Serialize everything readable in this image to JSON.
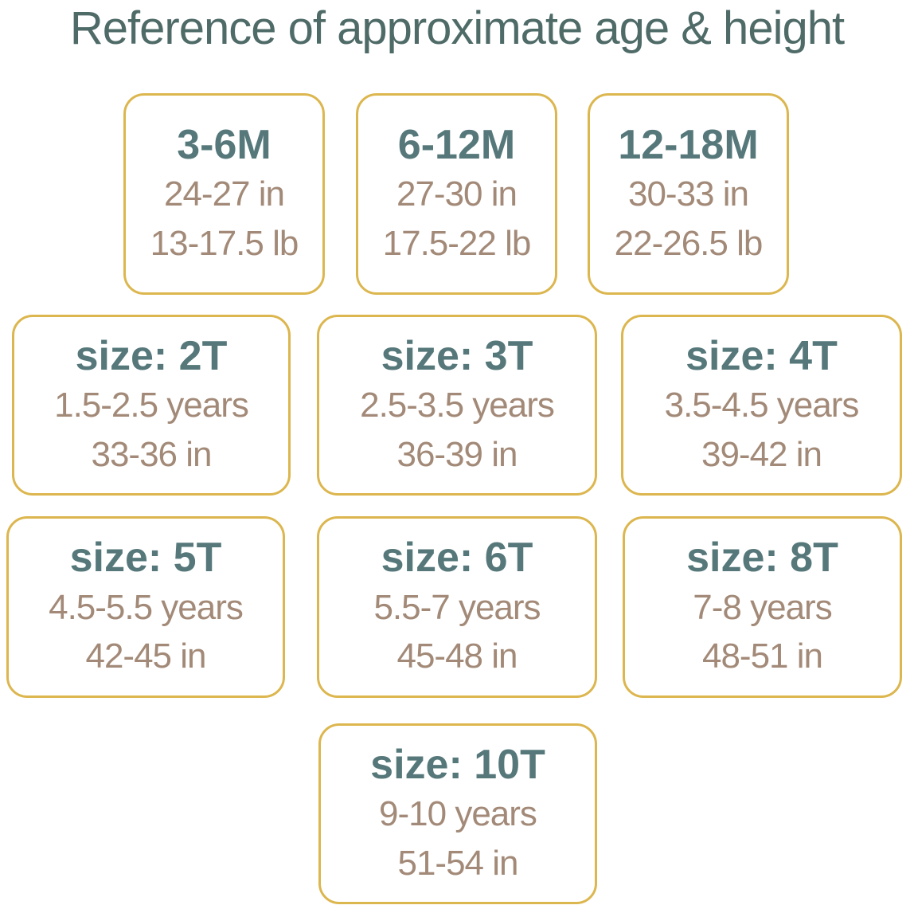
{
  "title": "Reference of approximate age & height",
  "cards": [
    {
      "heading": "3-6M",
      "lines": [
        "24-27 in",
        "13-17.5 lb"
      ]
    },
    {
      "heading": "6-12M",
      "lines": [
        "27-30 in",
        "17.5-22 lb"
      ]
    },
    {
      "heading": "12-18M",
      "lines": [
        "30-33 in",
        "22-26.5 lb"
      ]
    },
    {
      "heading": "size: 2T",
      "lines": [
        "1.5-2.5 years",
        "33-36 in"
      ]
    },
    {
      "heading": "size: 3T",
      "lines": [
        "2.5-3.5 years",
        "36-39 in"
      ]
    },
    {
      "heading": "size: 4T",
      "lines": [
        "3.5-4.5 years",
        "39-42 in"
      ]
    },
    {
      "heading": "size: 5T",
      "lines": [
        "4.5-5.5 years",
        "42-45 in"
      ]
    },
    {
      "heading": "size: 6T",
      "lines": [
        "5.5-7 years",
        "45-48 in"
      ]
    },
    {
      "heading": "size: 8T",
      "lines": [
        "7-8 years",
        "48-51 in"
      ]
    },
    {
      "heading": "size: 10T",
      "lines": [
        "9-10 years",
        "51-54 in"
      ]
    }
  ]
}
